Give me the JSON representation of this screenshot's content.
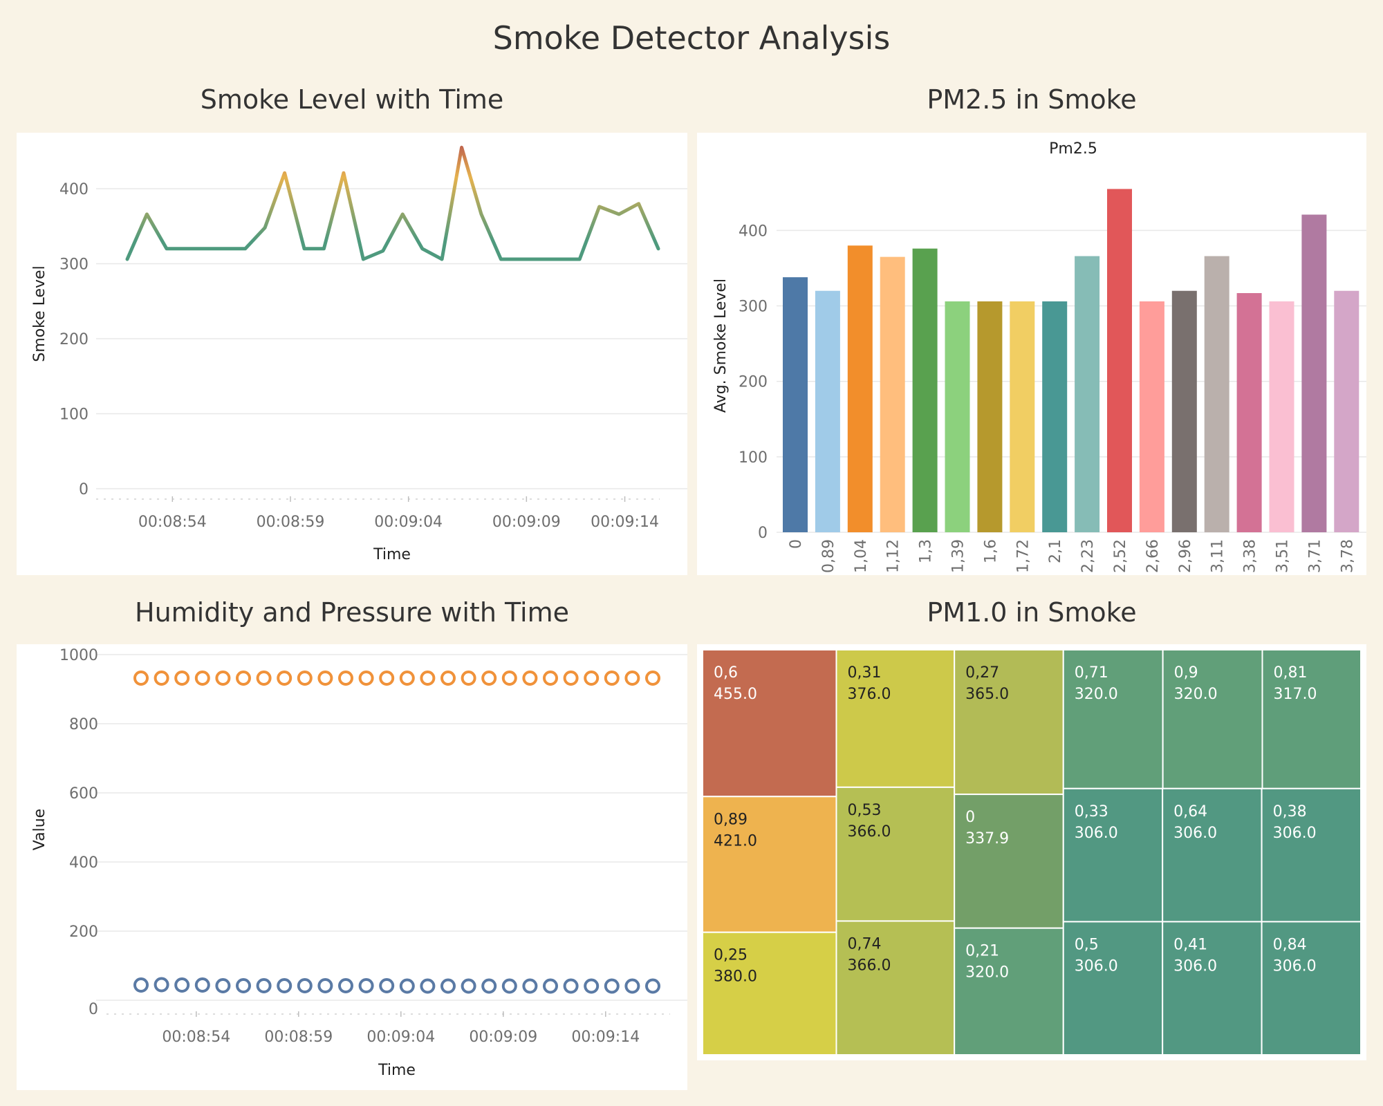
{
  "page": {
    "title": "Smoke Detector Analysis"
  },
  "panels": {
    "smoke": {
      "title": "Smoke Level with Time"
    },
    "pm25": {
      "title": "PM2.5 in Smoke"
    },
    "humidity": {
      "title": "Humidity and Pressure with Time"
    },
    "pm10": {
      "title": "PM1.0 in Smoke"
    }
  },
  "colors": {
    "background": "#f9f3e6",
    "line_low": "#4e9a7e",
    "line_mid": "#e5b24e",
    "line_high": "#c1684e",
    "pressure": "#f0923a",
    "humidity": "#5a7aa5"
  },
  "chart_data": [
    {
      "type": "line",
      "title": "",
      "xlabel": "Time",
      "ylabel": "Smoke Level",
      "x_ticks": [
        "00:08:54",
        "00:08:59",
        "00:09:04",
        "00:09:09",
        "00:09:14"
      ],
      "ylim": [
        0,
        470
      ],
      "y_ticks": [
        0,
        100,
        200,
        300,
        400
      ],
      "grid": true,
      "color_scale": "green-yellow-red by value",
      "values": [
        306,
        366,
        320,
        320,
        320,
        320,
        320,
        348,
        421,
        320,
        320,
        421,
        306,
        317,
        366,
        320,
        306,
        455,
        366,
        306,
        306,
        306,
        306,
        306,
        376,
        366,
        380,
        320
      ]
    },
    {
      "type": "bar",
      "title": "Pm2.5",
      "xlabel": "",
      "ylabel": "Avg. Smoke Level",
      "ylim": [
        0,
        470
      ],
      "y_ticks": [
        0,
        100,
        200,
        300,
        400
      ],
      "grid": true,
      "categories": [
        "0",
        "0,89",
        "1,04",
        "1,12",
        "1,3",
        "1,39",
        "1,6",
        "1,72",
        "2,1",
        "2,23",
        "2,52",
        "2,66",
        "2,96",
        "3,11",
        "3,38",
        "3,51",
        "3,71",
        "3,78"
      ],
      "values": [
        338,
        320,
        380,
        365,
        376,
        306,
        306,
        306,
        306,
        366,
        455,
        306,
        320,
        366,
        317,
        306,
        421,
        320
      ],
      "colors": [
        "#4e79a7",
        "#a0cbe8",
        "#f28e2b",
        "#ffbe7d",
        "#59a14f",
        "#8cd17d",
        "#b6992d",
        "#f1ce63",
        "#499894",
        "#86bcb6",
        "#e15759",
        "#ff9d9a",
        "#79706e",
        "#bab0ac",
        "#d37295",
        "#fabfd2",
        "#b07aa1",
        "#d4a6c8"
      ]
    },
    {
      "type": "scatter",
      "title": "",
      "xlabel": "Time",
      "ylabel": "Value",
      "x_ticks": [
        "00:08:54",
        "00:08:59",
        "00:09:04",
        "00:09:09",
        "00:09:14"
      ],
      "ylim": [
        0,
        1030
      ],
      "y_ticks": [
        0,
        200,
        400,
        600,
        800,
        1000
      ],
      "grid": true,
      "series": [
        {
          "color": "#f0923a",
          "values": [
            932,
            932,
            932,
            932,
            932,
            932,
            932,
            932,
            932,
            932,
            932,
            932,
            932,
            932,
            932,
            932,
            932,
            932,
            932,
            932,
            932,
            932,
            932,
            932,
            932,
            932
          ]
        },
        {
          "color": "#5a7aa5",
          "values": [
            44,
            45,
            44,
            44,
            42,
            42,
            42,
            42,
            42,
            42,
            42,
            42,
            42,
            41,
            41,
            41,
            41,
            41,
            41,
            41,
            41,
            41,
            41,
            41,
            41,
            41
          ]
        }
      ]
    },
    {
      "type": "treemap",
      "title": "",
      "cells": [
        {
          "label": "0,6",
          "value": 455.0,
          "display": "455.0",
          "color": "#c36b50",
          "text": "#ffffff"
        },
        {
          "label": "0,89",
          "value": 421.0,
          "display": "421.0",
          "color": "#eeb34f",
          "text": "#222222"
        },
        {
          "label": "0,25",
          "value": 380.0,
          "display": "380.0",
          "color": "#d6cf47",
          "text": "#222222"
        },
        {
          "label": "0,31",
          "value": 376.0,
          "display": "376.0",
          "color": "#cdc94a",
          "text": "#222222"
        },
        {
          "label": "0,53",
          "value": 366.0,
          "display": "366.0",
          "color": "#b5bf54",
          "text": "#222222"
        },
        {
          "label": "0,74",
          "value": 366.0,
          "display": "366.0",
          "color": "#b5bf54",
          "text": "#222222"
        },
        {
          "label": "0,27",
          "value": 365.0,
          "display": "365.0",
          "color": "#b2bb56",
          "text": "#222222"
        },
        {
          "label": "0",
          "value": 337.9,
          "display": "337.9",
          "color": "#739f68",
          "text": "#ffffff"
        },
        {
          "label": "0,21",
          "value": 320.0,
          "display": "320.0",
          "color": "#619f79",
          "text": "#ffffff"
        },
        {
          "label": "0,71",
          "value": 320.0,
          "display": "320.0",
          "color": "#619f79",
          "text": "#ffffff"
        },
        {
          "label": "0,9",
          "value": 320.0,
          "display": "320.0",
          "color": "#619f79",
          "text": "#ffffff"
        },
        {
          "label": "0,81",
          "value": 317.0,
          "display": "317.0",
          "color": "#5f9e7a",
          "text": "#ffffff"
        },
        {
          "label": "0,33",
          "value": 306.0,
          "display": "306.0",
          "color": "#529882",
          "text": "#ffffff"
        },
        {
          "label": "0,5",
          "value": 306.0,
          "display": "306.0",
          "color": "#529882",
          "text": "#ffffff"
        },
        {
          "label": "0,64",
          "value": 306.0,
          "display": "306.0",
          "color": "#529882",
          "text": "#ffffff"
        },
        {
          "label": "0,38",
          "value": 306.0,
          "display": "306.0",
          "color": "#529882",
          "text": "#ffffff"
        },
        {
          "label": "0,41",
          "value": 306.0,
          "display": "306.0",
          "color": "#529882",
          "text": "#ffffff"
        },
        {
          "label": "0,84",
          "value": 306.0,
          "display": "306.0",
          "color": "#529882",
          "text": "#ffffff"
        }
      ]
    }
  ]
}
